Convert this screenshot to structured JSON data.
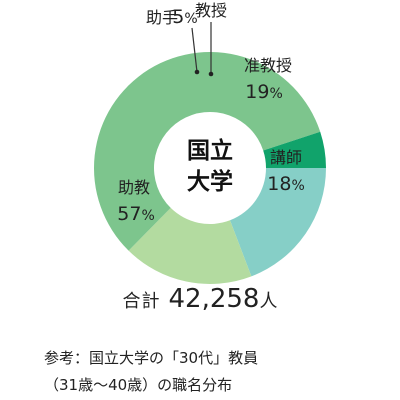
{
  "chart_data": {
    "type": "donut",
    "center_label": [
      "国立",
      "大学"
    ],
    "slices": [
      {
        "label": "教授",
        "value": 0,
        "percent_text": "",
        "color": "#2e9d6c"
      },
      {
        "label": "准教授",
        "value": 19,
        "percent_text": "19",
        "color": "#86cfc7"
      },
      {
        "label": "講師",
        "value": 18,
        "percent_text": "18",
        "color": "#b3dba0"
      },
      {
        "label": "助教",
        "value": 57,
        "percent_text": "57",
        "color": "#7dc58d"
      },
      {
        "label": "助手",
        "value": 5,
        "percent_text": "5",
        "color": "#11a36b"
      }
    ],
    "percent_symbol": "%"
  },
  "total": {
    "label": "合計",
    "value": "42,258",
    "unit": "人"
  },
  "note": {
    "line1": "参考：国立大学の「30代」教員",
    "line2": "（31歳〜40歳）の職名分布"
  }
}
